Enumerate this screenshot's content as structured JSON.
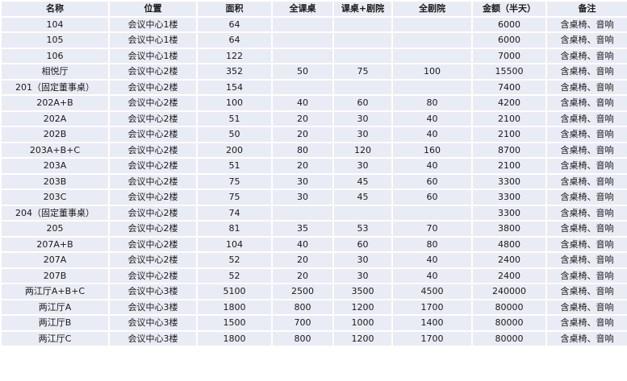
{
  "table": {
    "headers": [
      "名称",
      "位置",
      "面积",
      "全课桌",
      "课桌+剧院",
      "全剧院",
      "金额（半天）",
      "备注"
    ],
    "rows": [
      [
        "104",
        "会议中心1楼",
        "64",
        "",
        "",
        "",
        "6000",
        "含桌椅、音响"
      ],
      [
        "105",
        "会议中心1楼",
        "64",
        "",
        "",
        "",
        "6000",
        "含桌椅、音响"
      ],
      [
        "106",
        "会议中心1楼",
        "122",
        "",
        "",
        "",
        "7000",
        "含桌椅、音响"
      ],
      [
        "相悦厅",
        "会议中心2楼",
        "352",
        "50",
        "75",
        "100",
        "15500",
        "含桌椅、音响"
      ],
      [
        "201（固定董事桌）",
        "会议中心2楼",
        "154",
        "",
        "",
        "",
        "7400",
        "含桌椅、音响"
      ],
      [
        "202A+B",
        "会议中心2楼",
        "100",
        "40",
        "60",
        "80",
        "4200",
        "含桌椅、音响"
      ],
      [
        "202A",
        "会议中心2楼",
        "51",
        "20",
        "30",
        "40",
        "2100",
        "含桌椅、音响"
      ],
      [
        "202B",
        "会议中心2楼",
        "50",
        "20",
        "30",
        "40",
        "2100",
        "含桌椅、音响"
      ],
      [
        "203A+B+C",
        "会议中心2楼",
        "200",
        "80",
        "120",
        "160",
        "8700",
        "含桌椅、音响"
      ],
      [
        "203A",
        "会议中心2楼",
        "51",
        "20",
        "30",
        "40",
        "2100",
        "含桌椅、音响"
      ],
      [
        "203B",
        "会议中心2楼",
        "75",
        "30",
        "45",
        "60",
        "3300",
        "含桌椅、音响"
      ],
      [
        "203C",
        "会议中心2楼",
        "75",
        "30",
        "45",
        "60",
        "3300",
        "含桌椅、音响"
      ],
      [
        "204（固定董事桌）",
        "会议中心2楼",
        "74",
        "",
        "",
        "",
        "3300",
        "含桌椅、音响"
      ],
      [
        "205",
        "会议中心2楼",
        "81",
        "35",
        "53",
        "70",
        "3800",
        "含桌椅、音响"
      ],
      [
        "207A+B",
        "会议中心2楼",
        "104",
        "40",
        "60",
        "80",
        "4800",
        "含桌椅、音响"
      ],
      [
        "207A",
        "会议中心2楼",
        "52",
        "20",
        "30",
        "40",
        "2400",
        "含桌椅、音响"
      ],
      [
        "207B",
        "会议中心2楼",
        "52",
        "20",
        "30",
        "40",
        "2400",
        "含桌椅、音响"
      ],
      [
        "两江厅A+B+C",
        "会议中心3楼",
        "5100",
        "2500",
        "3500",
        "4500",
        "240000",
        "含桌椅、音响"
      ],
      [
        "两江厅A",
        "会议中心3楼",
        "1800",
        "800",
        "1200",
        "1700",
        "80000",
        "含桌椅、音响"
      ],
      [
        "两江厅B",
        "会议中心3楼",
        "1500",
        "700",
        "1000",
        "1400",
        "80000",
        "含桌椅、音响"
      ],
      [
        "两江厅C",
        "会议中心3楼",
        "1800",
        "800",
        "1200",
        "1700",
        "80000",
        "含桌椅、音响"
      ]
    ]
  }
}
